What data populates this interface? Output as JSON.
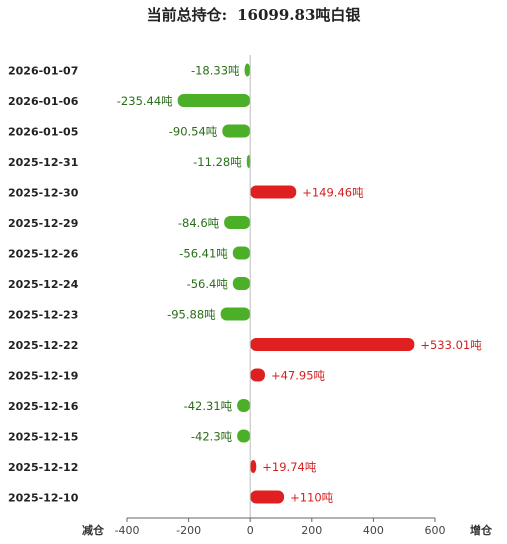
{
  "header": {
    "label": "当前总持仓:",
    "value": "16099.83",
    "unit": "吨白银"
  },
  "chart_data": {
    "type": "bar",
    "orientation": "horizontal",
    "categories": [
      "2026-01-07",
      "2026-01-06",
      "2026-01-05",
      "2025-12-31",
      "2025-12-30",
      "2025-12-29",
      "2025-12-26",
      "2025-12-24",
      "2025-12-23",
      "2025-12-22",
      "2025-12-19",
      "2025-12-16",
      "2025-12-15",
      "2025-12-12",
      "2025-12-10"
    ],
    "values": [
      -18.33,
      -235.44,
      -90.54,
      -11.28,
      149.46,
      -84.6,
      -56.41,
      -56.4,
      -95.88,
      533.01,
      47.95,
      -42.31,
      -42.3,
      19.74,
      110
    ],
    "data_labels": [
      "-18.33吨",
      "-235.44吨",
      "-90.54吨",
      "-11.28吨",
      "+149.46吨",
      "-84.6吨",
      "-56.41吨",
      "-56.4吨",
      "-95.88吨",
      "+533.01吨",
      "+47.95吨",
      "-42.31吨",
      "-42.3吨",
      "+19.74吨",
      "+110吨"
    ],
    "xlim": [
      -400,
      600
    ],
    "xticks": [
      "-400",
      "-200",
      "0",
      "200",
      "400",
      "600"
    ],
    "xlabel_left": "减仓",
    "xlabel_right": "增仓",
    "colors": {
      "positive": "#e02020",
      "negative": "#4caf28",
      "positive_text": "#d42020",
      "negative_text": "#2a6e1a",
      "axis": "#666666"
    },
    "grid": false
  }
}
